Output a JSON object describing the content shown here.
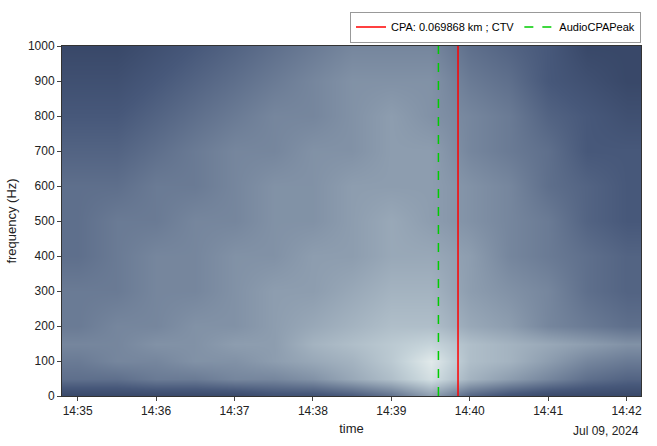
{
  "chart_data": {
    "type": "heatmap",
    "x_label": "time",
    "y_label": "frequency (Hz)",
    "date_label": "Jul 09, 2024",
    "x": [
      "2024-07-09 14:35:00",
      "2024-07-09 14:35:30",
      "2024-07-09 14:36:00",
      "2024-07-09 14:36:30",
      "2024-07-09 14:37:00",
      "2024-07-09 14:37:30",
      "2024-07-09 14:38:00",
      "2024-07-09 14:38:30",
      "2024-07-09 14:39:00",
      "2024-07-09 14:39:30",
      "2024-07-09 14:40:00",
      "2024-07-09 14:40:30",
      "2024-07-09 14:41:00",
      "2024-07-09 14:41:30",
      "2024-07-09 14:42:00"
    ],
    "y": [
      0,
      50,
      100,
      150,
      200,
      300,
      400,
      500,
      600,
      700,
      800,
      900,
      1000
    ],
    "z": [
      [
        2,
        2,
        2,
        2,
        2,
        2.5,
        2.5,
        3,
        4,
        6,
        3.5,
        2.5,
        2,
        2,
        2
      ],
      [
        4,
        4,
        4.5,
        4.5,
        5,
        5,
        5.5,
        6.5,
        7.5,
        9,
        7,
        6,
        5,
        4,
        3.5
      ],
      [
        4.5,
        5,
        5,
        5.5,
        5.5,
        6,
        6.5,
        7,
        8,
        9.5,
        7.5,
        7,
        6,
        5,
        4.5
      ],
      [
        5,
        5,
        5.5,
        5.5,
        6,
        6,
        7,
        7.5,
        8,
        8.5,
        7.5,
        7,
        6.5,
        6,
        5.5
      ],
      [
        4.5,
        5,
        5,
        5.5,
        5.5,
        6,
        6.5,
        7,
        7.5,
        7.5,
        6.5,
        6,
        5,
        4.5,
        4
      ],
      [
        4.5,
        4.5,
        5,
        5,
        5.5,
        6,
        6,
        6.5,
        7,
        7,
        6,
        5.5,
        5,
        4,
        3.5
      ],
      [
        4,
        4.5,
        5,
        5,
        5.5,
        5.5,
        6,
        6,
        6.5,
        6.5,
        6,
        5,
        4.5,
        4,
        3.5
      ],
      [
        4,
        4.5,
        4.5,
        5,
        5,
        5.5,
        5.5,
        6,
        6.5,
        6,
        5.5,
        5,
        4.5,
        3.5,
        3
      ],
      [
        4,
        4,
        4.5,
        4.5,
        5,
        5.5,
        5.5,
        6,
        6,
        6,
        5.5,
        5,
        4,
        3.5,
        3
      ],
      [
        3.5,
        3.5,
        4,
        4.5,
        5,
        5,
        5.5,
        5.5,
        6,
        6,
        5,
        4.5,
        4,
        3,
        3
      ],
      [
        3,
        3,
        3.5,
        4,
        4.5,
        5,
        5,
        5.5,
        6,
        5.5,
        5,
        4.5,
        3.5,
        3,
        2.5
      ],
      [
        2.5,
        2.5,
        3,
        3.5,
        4,
        4.5,
        5,
        5.5,
        5.5,
        5.5,
        4.5,
        4,
        3,
        2.5,
        2
      ],
      [
        2,
        2,
        2.5,
        3,
        3.5,
        4,
        4.5,
        5,
        5,
        5,
        4,
        3.5,
        3,
        2,
        2
      ]
    ],
    "zlim": [
      0,
      10
    ],
    "xlim": [
      "2024-07-09 14:34:48",
      "2024-07-09 14:42:11"
    ],
    "xticks": [
      {
        "value": "2024-07-09 14:35:00",
        "label": "14:35"
      },
      {
        "value": "2024-07-09 14:36:00",
        "label": "14:36"
      },
      {
        "value": "2024-07-09 14:37:00",
        "label": "14:37"
      },
      {
        "value": "2024-07-09 14:38:00",
        "label": "14:38"
      },
      {
        "value": "2024-07-09 14:39:00",
        "label": "14:39"
      },
      {
        "value": "2024-07-09 14:40:00",
        "label": "14:40"
      },
      {
        "value": "2024-07-09 14:41:00",
        "label": "14:41"
      },
      {
        "value": "2024-07-09 14:42:00",
        "label": "14:42"
      }
    ],
    "ylim": [
      0,
      1000
    ],
    "yticks": [
      0,
      100,
      200,
      300,
      400,
      500,
      600,
      700,
      800,
      900,
      1000
    ],
    "grid": false,
    "legend": "top",
    "series": [
      {
        "name": "CPA: 0.069868 km ; CTV",
        "type": "line",
        "color": "#ff0000",
        "line_style": "solid",
        "x": "2024-07-09 14:39:51"
      },
      {
        "name": "AudioCPAPeak",
        "type": "line",
        "color": "#00cc00",
        "line_style": "dashed",
        "x": "2024-07-09 14:39:36"
      }
    ]
  }
}
